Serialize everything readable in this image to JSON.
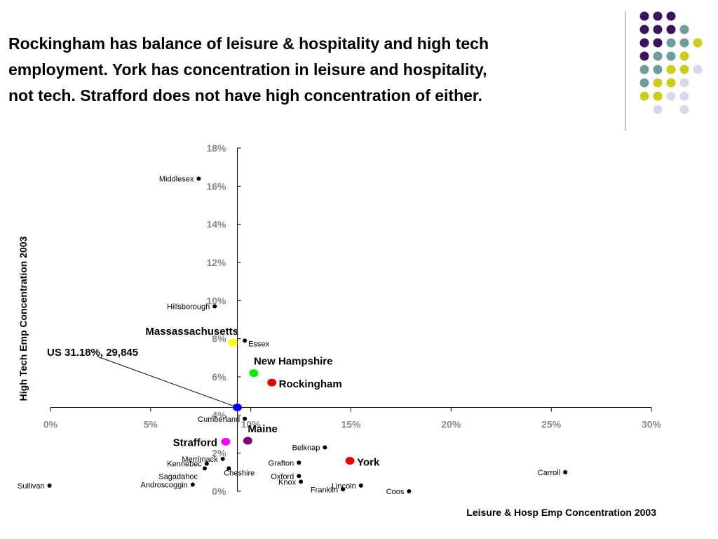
{
  "title_lines": [
    "Rockingham has balance of leisure & hospitality and high tech",
    "employment.  York has concentration in leisure and hospitality,",
    "not tech.  Strafford does not have high concentration of either."
  ],
  "decor": {
    "dot_rows": [
      [
        "#3b1460",
        "#3b1460",
        "#3b1460",
        null,
        null
      ],
      [
        "#3b1460",
        "#3b1460",
        "#3b1460",
        "#6f9c9c",
        null
      ],
      [
        "#3b1460",
        "#3b1460",
        "#6f9c9c",
        "#6f9c9c",
        "#cccc1a"
      ],
      [
        "#3b1460",
        "#6f9c9c",
        "#6f9c9c",
        "#cccc1a",
        null
      ],
      [
        "#6f9c9c",
        "#6f9c9c",
        "#cccc1a",
        "#cccc1a",
        "#d8d8ea"
      ],
      [
        "#6f9c9c",
        "#cccc1a",
        "#cccc1a",
        "#d8d8ea",
        null
      ],
      [
        "#cccc1a",
        "#cccc1a",
        "#d8d8ea",
        "#d8d8ea",
        null
      ],
      [
        null,
        "#d8d8ea",
        null,
        "#d8d8ea",
        null
      ]
    ]
  },
  "chart_data": {
    "type": "scatter",
    "xlabel": "Leisure & Hosp Emp Concentration 2003",
    "ylabel": "High Tech Emp Concentration 2003",
    "xlim": [
      0,
      30
    ],
    "ylim": [
      0,
      18
    ],
    "x_ticks": [
      "0%",
      "5%",
      "10%",
      "15%",
      "20%",
      "25%",
      "30%"
    ],
    "y_ticks": [
      "0%",
      "2%",
      "4%",
      "6%",
      "8%",
      "10%",
      "12%",
      "14%",
      "16%",
      "18%"
    ],
    "axis_cross": {
      "x": 9.33,
      "y": 4.4
    },
    "annotation": {
      "text": "US 31.18%, 29,845",
      "points_to": "US"
    },
    "points": [
      {
        "name": "Middlesex",
        "x": 7.4,
        "y": 16.4,
        "color": "#000000",
        "size": "small",
        "label_side": "left"
      },
      {
        "name": "Hillsborough",
        "x": 8.2,
        "y": 9.7,
        "color": "#000000",
        "size": "small",
        "label_side": "left"
      },
      {
        "name": "Essex",
        "x": 9.7,
        "y": 7.9,
        "color": "#000000",
        "size": "small",
        "label_side": "right-below"
      },
      {
        "name": "Cumberland",
        "x": 9.7,
        "y": 3.8,
        "color": "#000000",
        "size": "small",
        "label_side": "left"
      },
      {
        "name": "Belknap",
        "x": 13.7,
        "y": 2.3,
        "color": "#000000",
        "size": "small",
        "label_side": "left"
      },
      {
        "name": "Merrimack",
        "x": 8.6,
        "y": 1.7,
        "color": "#000000",
        "size": "small",
        "label_side": "left"
      },
      {
        "name": "Kennebec",
        "x": 7.8,
        "y": 1.45,
        "color": "#000000",
        "size": "small",
        "label_side": "left"
      },
      {
        "name": "Grafton",
        "x": 12.4,
        "y": 1.5,
        "color": "#000000",
        "size": "small",
        "label_side": "left"
      },
      {
        "name": "Cheshire",
        "x": 8.9,
        "y": 1.2,
        "color": "#000000",
        "size": "small",
        "label_side": "below"
      },
      {
        "name": "Sagadahoc",
        "x": 7.7,
        "y": 1.2,
        "color": "#000000",
        "size": "small",
        "label_side": "left-below"
      },
      {
        "name": "Oxford",
        "x": 12.4,
        "y": 0.8,
        "color": "#000000",
        "size": "small",
        "label_side": "left"
      },
      {
        "name": "Knox",
        "x": 12.5,
        "y": 0.5,
        "color": "#000000",
        "size": "small",
        "label_side": "left"
      },
      {
        "name": "Androscoggin",
        "x": 7.1,
        "y": 0.35,
        "color": "#000000",
        "size": "small",
        "label_side": "left"
      },
      {
        "name": "Lincoln",
        "x": 15.5,
        "y": 0.3,
        "color": "#000000",
        "size": "small",
        "label_side": "left"
      },
      {
        "name": "Franklin",
        "x": 14.6,
        "y": 0.1,
        "color": "#000000",
        "size": "small",
        "label_side": "left"
      },
      {
        "name": "Coos",
        "x": 17.9,
        "y": 0.0,
        "color": "#000000",
        "size": "small",
        "label_side": "left"
      },
      {
        "name": "Sullivan",
        "x": -0.05,
        "y": 0.3,
        "color": "#000000",
        "size": "small",
        "label_side": "left"
      },
      {
        "name": "Carroll",
        "x": 25.7,
        "y": 1.0,
        "color": "#000000",
        "size": "small",
        "label_side": "left"
      },
      {
        "name": "Massassachusetts",
        "x": 9.1,
        "y": 7.8,
        "color": "#ffff00",
        "size": "big",
        "label_side": "above-left"
      },
      {
        "name": "New Hampshire",
        "x": 10.15,
        "y": 6.2,
        "color": "#00ee00",
        "size": "big",
        "label_side": "above-right"
      },
      {
        "name": "Rockingham",
        "x": 11.05,
        "y": 5.7,
        "color": "#ee0000",
        "size": "big",
        "label_side": "right"
      },
      {
        "name": "Maine",
        "x": 9.85,
        "y": 2.65,
        "color": "#800080",
        "size": "big",
        "label_side": "above-right"
      },
      {
        "name": "Strafford",
        "x": 8.75,
        "y": 2.6,
        "color": "#ff00ff",
        "size": "big",
        "label_side": "left"
      },
      {
        "name": "York",
        "x": 14.95,
        "y": 1.6,
        "color": "#ee0000",
        "size": "big",
        "label_side": "right"
      },
      {
        "name": "US",
        "x": 9.33,
        "y": 4.4,
        "color": "#0000ff",
        "size": "big",
        "label_side": "none"
      }
    ]
  }
}
